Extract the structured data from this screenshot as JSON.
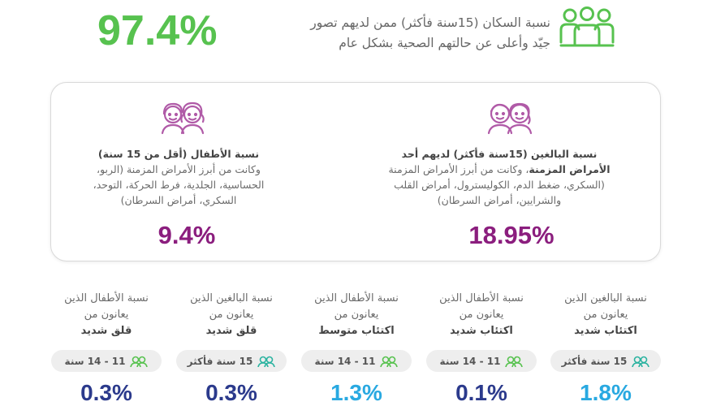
{
  "header": {
    "percent": "97.4%",
    "line1": "نسبة السكان (15سنة فأكثر) ممن لديهم تصور",
    "line2": "جيّد وأعلى عن حالتهم الصحية بشكل عام",
    "icon": "group-of-people-icon",
    "color": "#57c24f"
  },
  "card": {
    "adults": {
      "icon": "adults-faces-icon",
      "title_line1": "نسبة البالغين (15سنة فأكثر) لديهم أحد",
      "title_line2": "الأمراض المزمنة",
      "desc_line2_rest": "، وكانت من أبرز الأمراض المزمنة",
      "desc_line3": "(السكري، ضغط الدم، الكوليسترول، أمراض القلب",
      "desc_line4": "والشرايين، أمراض السرطان)",
      "value": "18.95%"
    },
    "children": {
      "icon": "children-faces-icon",
      "title_line1": "نسبة الأطفال (أقل من 15 سنة)",
      "desc_line2": "وكانت من أبرز الأمراض المزمنة (الربو،",
      "desc_line3": "الحساسية، الجلدية، فرط الحركة، التوحد،",
      "desc_line4": "السكري، أمراض السرطان)",
      "value": "9.4%"
    },
    "value_color": "#8b1e7e"
  },
  "stats": [
    {
      "line1": "نسبة البالغين الذين",
      "line2": "يعانون من",
      "line3": "اكتئاب شديد",
      "pill": "15 سنة فأكثر",
      "pill_icon": "adults-icon",
      "value": "1.8%",
      "color": "#29a9e1"
    },
    {
      "line1": "نسبة الأطفال الذين",
      "line2": "يعانون من",
      "line3": "اكتئاب شديد",
      "pill": "11 - 14 سنة",
      "pill_icon": "children-icon",
      "value": "0.1%",
      "color": "#2b3a8c"
    },
    {
      "line1": "نسبة الأطفال الذين",
      "line2": "يعانون من",
      "line3": "اكتئاب متوسط",
      "pill": "11 - 14 سنة",
      "pill_icon": "children-icon",
      "value": "1.3%",
      "color": "#29a9e1"
    },
    {
      "line1": "نسبة البالغين الذين",
      "line2": "يعانون من",
      "line3": "قلق شديد",
      "pill": "15 سنة فأكثر",
      "pill_icon": "adults-icon",
      "value": "0.3%",
      "color": "#2b3a8c"
    },
    {
      "line1": "نسبة الأطفال الذين",
      "line2": "يعانون من",
      "line3": "قلق شديد",
      "pill": "11 - 14 سنة",
      "pill_icon": "children-icon",
      "value": "0.3%",
      "color": "#2b3a8c"
    }
  ]
}
